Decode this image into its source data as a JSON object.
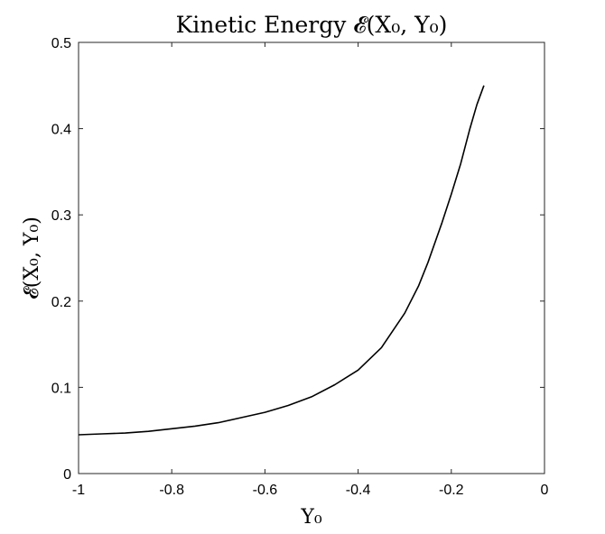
{
  "chart_data": {
    "type": "line",
    "title": "Kinetic Energy 𝓔(X₀, Y₀)",
    "xlabel": "Y₀",
    "ylabel": "𝓔(X₀, Y₀)",
    "xlim": [
      -1,
      0
    ],
    "ylim": [
      0,
      0.5
    ],
    "xticks": [
      -1,
      -0.8,
      -0.6,
      -0.4,
      -0.2,
      0
    ],
    "xtick_labels": [
      "-1",
      "-0.8",
      "-0.6",
      "-0.4",
      "-0.2",
      "0"
    ],
    "yticks": [
      0,
      0.1,
      0.2,
      0.3,
      0.4,
      0.5
    ],
    "ytick_labels": [
      "0",
      "0.1",
      "0.2",
      "0.3",
      "0.4",
      "0.5"
    ],
    "grid": false,
    "line_color": "#000000",
    "series": [
      {
        "x": [
          -1.0,
          -0.95,
          -0.9,
          -0.85,
          -0.8,
          -0.75,
          -0.7,
          -0.65,
          -0.6,
          -0.55,
          -0.5,
          -0.45,
          -0.4,
          -0.35,
          -0.3,
          -0.27,
          -0.25,
          -0.22,
          -0.2,
          -0.18,
          -0.16,
          -0.145,
          -0.13
        ],
        "y": [
          0.045,
          0.046,
          0.047,
          0.049,
          0.052,
          0.055,
          0.059,
          0.065,
          0.071,
          0.079,
          0.089,
          0.103,
          0.12,
          0.146,
          0.186,
          0.218,
          0.245,
          0.291,
          0.324,
          0.359,
          0.4,
          0.428,
          0.45
        ]
      }
    ]
  }
}
